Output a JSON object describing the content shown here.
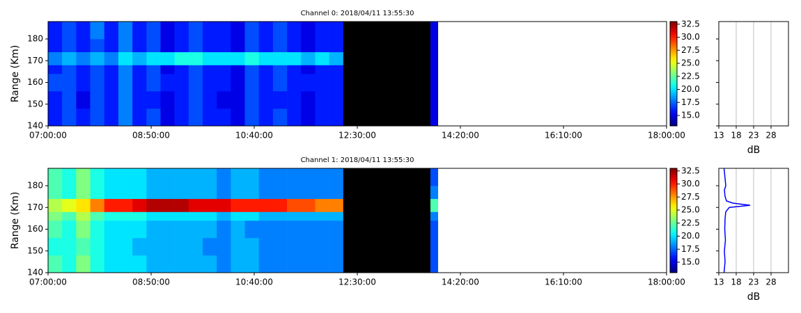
{
  "chart_data": [
    {
      "type": "heatmap",
      "title": "Channel 0: 2018/04/11 13:55:30",
      "ylabel": "Range (Km)",
      "xlim": [
        420,
        1080
      ],
      "xticks": [
        {
          "value": 420,
          "label": "07:00:00"
        },
        {
          "value": 530,
          "label": "08:50:00"
        },
        {
          "value": 640,
          "label": "10:40:00"
        },
        {
          "value": 750,
          "label": "12:30:00"
        },
        {
          "value": 860,
          "label": "14:20:00"
        },
        {
          "value": 970,
          "label": "16:10:00"
        },
        {
          "value": 1080,
          "label": "18:00:00"
        }
      ],
      "ylim": [
        140,
        188
      ],
      "yticks": [
        140,
        150,
        160,
        170,
        180
      ],
      "x_edges": [
        420,
        435,
        450,
        465,
        480,
        495,
        510,
        525,
        540,
        555,
        570,
        585,
        600,
        615,
        630,
        645,
        660,
        675,
        690,
        705,
        720,
        735,
        828,
        836
      ],
      "y_edges": [
        140,
        148,
        156,
        164,
        168,
        174,
        180,
        188
      ],
      "z": [
        [
          16,
          17,
          16,
          17,
          16,
          18,
          16,
          17,
          15,
          16,
          17,
          16,
          16,
          15,
          17,
          16,
          17,
          16,
          15,
          16,
          16,
          0,
          15
        ],
        [
          16,
          17,
          15,
          17,
          16,
          18,
          16,
          16,
          15,
          16,
          17,
          16,
          15,
          15,
          17,
          16,
          16,
          16,
          15,
          16,
          16,
          0,
          15
        ],
        [
          17,
          17,
          16,
          17,
          16,
          18,
          16,
          17,
          16,
          16,
          17,
          16,
          16,
          15,
          17,
          16,
          17,
          16,
          16,
          16,
          16,
          0,
          15
        ],
        [
          16,
          17,
          16,
          17,
          16,
          18,
          16,
          17,
          15,
          16,
          17,
          16,
          16,
          15,
          17,
          16,
          17,
          16,
          15,
          16,
          16,
          0,
          15
        ],
        [
          18,
          19,
          18,
          19,
          18,
          20,
          19,
          20,
          20,
          21,
          21,
          20,
          20,
          20,
          21,
          20,
          20,
          20,
          19,
          20,
          19,
          0,
          15
        ],
        [
          16,
          17,
          16,
          17,
          16,
          18,
          16,
          17,
          15,
          16,
          17,
          16,
          16,
          15,
          17,
          16,
          17,
          16,
          15,
          16,
          16,
          0,
          15
        ],
        [
          16,
          17,
          16,
          18,
          16,
          18,
          16,
          17,
          15,
          16,
          17,
          16,
          16,
          15,
          17,
          16,
          17,
          16,
          15,
          16,
          16,
          0,
          15
        ]
      ],
      "colormap": "jet",
      "clim": [
        13,
        33
      ],
      "under_color": "#000000",
      "cticks": [
        {
          "value": 15,
          "label": "15.0"
        },
        {
          "value": 17.5,
          "label": "17.5"
        },
        {
          "value": 20,
          "label": "20.0"
        },
        {
          "value": 22.5,
          "label": "22.5"
        },
        {
          "value": 25,
          "label": "25.0"
        },
        {
          "value": 27.5,
          "label": "27.5"
        },
        {
          "value": 30,
          "label": "30.0"
        },
        {
          "value": 32.5,
          "label": "32.5"
        }
      ]
    },
    {
      "type": "profile",
      "xlabel": "dB",
      "xlim": [
        13,
        33
      ],
      "xticks": [
        13,
        18,
        23,
        28
      ],
      "grid": true,
      "ylim": [
        140,
        188
      ],
      "yticks": [
        140,
        150,
        160,
        170,
        180
      ],
      "show_ytick_labels": false,
      "series": []
    },
    {
      "type": "heatmap",
      "title": "Channel 1: 2018/04/11 13:55:30",
      "ylabel": "Range (Km)",
      "xlim": [
        420,
        1080
      ],
      "xticks": [
        {
          "value": 420,
          "label": "07:00:00"
        },
        {
          "value": 530,
          "label": "08:50:00"
        },
        {
          "value": 640,
          "label": "10:40:00"
        },
        {
          "value": 750,
          "label": "12:30:00"
        },
        {
          "value": 860,
          "label": "14:20:00"
        },
        {
          "value": 970,
          "label": "16:10:00"
        },
        {
          "value": 1080,
          "label": "18:00:00"
        }
      ],
      "ylim": [
        140,
        188
      ],
      "yticks": [
        140,
        150,
        160,
        170,
        180
      ],
      "x_edges": [
        420,
        435,
        450,
        465,
        480,
        495,
        510,
        525,
        540,
        555,
        570,
        585,
        600,
        615,
        630,
        645,
        660,
        675,
        690,
        705,
        720,
        735,
        828,
        836
      ],
      "y_edges": [
        140,
        148,
        156,
        164,
        168,
        174,
        180,
        188
      ],
      "z": [
        [
          22,
          21,
          23,
          21,
          20,
          20,
          20,
          19,
          19,
          19,
          19,
          19,
          18,
          19,
          19,
          18,
          18,
          18,
          18,
          18,
          18,
          0,
          17
        ],
        [
          21,
          21,
          22,
          21,
          20,
          20,
          19,
          19,
          19,
          19,
          19,
          18,
          18,
          19,
          19,
          18,
          18,
          18,
          18,
          18,
          18,
          0,
          17
        ],
        [
          22,
          21,
          23,
          21,
          20,
          20,
          20,
          19,
          19,
          19,
          19,
          19,
          18,
          19,
          18,
          18,
          18,
          18,
          18,
          18,
          18,
          0,
          17
        ],
        [
          23,
          22,
          24,
          22,
          21,
          21,
          21,
          20,
          20,
          20,
          20,
          20,
          19,
          20,
          20,
          19,
          19,
          19,
          19,
          19,
          19,
          0,
          18
        ],
        [
          24,
          25,
          26,
          28,
          30,
          30,
          31,
          32,
          32,
          32,
          31,
          31,
          31,
          30,
          30,
          30,
          30,
          29,
          29,
          28,
          28,
          0,
          22
        ],
        [
          22,
          21,
          23,
          21,
          20,
          20,
          20,
          19,
          19,
          19,
          19,
          19,
          18,
          19,
          19,
          18,
          18,
          18,
          18,
          18,
          18,
          0,
          18
        ],
        [
          22,
          21,
          23,
          21,
          20,
          20,
          20,
          19,
          19,
          19,
          19,
          19,
          18,
          19,
          19,
          18,
          18,
          18,
          18,
          18,
          18,
          0,
          17
        ]
      ],
      "colormap": "jet",
      "clim": [
        13,
        33
      ],
      "under_color": "#000000",
      "cticks": [
        {
          "value": 15,
          "label": "15.0"
        },
        {
          "value": 17.5,
          "label": "17.5"
        },
        {
          "value": 20,
          "label": "20.0"
        },
        {
          "value": 22.5,
          "label": "22.5"
        },
        {
          "value": 25,
          "label": "25.0"
        },
        {
          "value": 27.5,
          "label": "27.5"
        },
        {
          "value": 30,
          "label": "30.0"
        },
        {
          "value": 32.5,
          "label": "32.5"
        }
      ]
    },
    {
      "type": "profile",
      "xlabel": "dB",
      "xlim": [
        13,
        33
      ],
      "xticks": [
        13,
        18,
        23,
        28
      ],
      "grid": true,
      "ylim": [
        140,
        188
      ],
      "yticks": [
        140,
        150,
        160,
        170,
        180
      ],
      "show_ytick_labels": false,
      "series": [
        {
          "color": "#0000ff",
          "y": [
            140,
            145,
            150,
            155,
            160,
            165,
            168,
            170,
            171,
            172,
            173,
            175,
            178,
            180,
            185,
            188
          ],
          "values": [
            14.5,
            14.8,
            14.6,
            14.9,
            14.7,
            14.8,
            15,
            16,
            22,
            17,
            15.2,
            14.8,
            14.6,
            15,
            14.7,
            14.5
          ]
        }
      ]
    }
  ]
}
